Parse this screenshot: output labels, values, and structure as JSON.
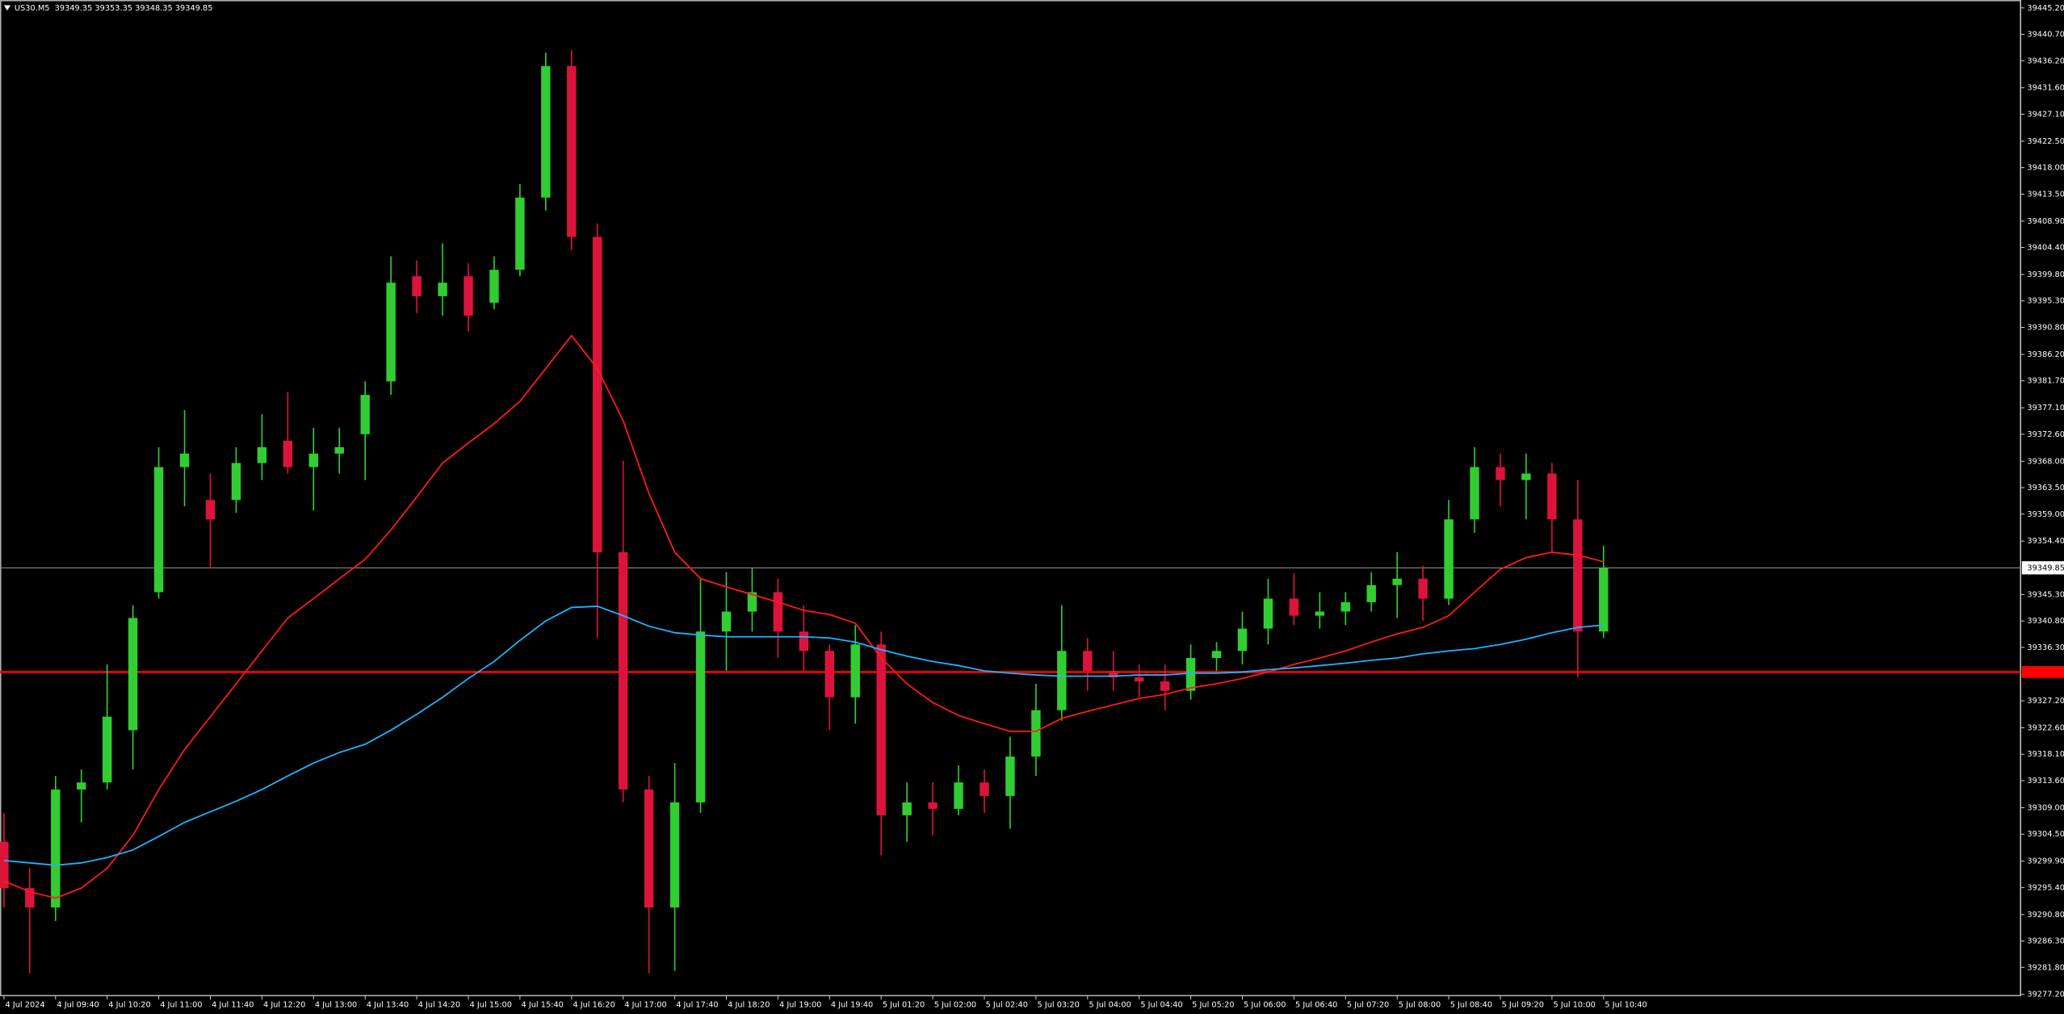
{
  "chart_data": {
    "type": "candlestick",
    "title": "US30.M5  39349.35 39353.35 39348.35 39349.85",
    "categories": [
      "4 Jul 2024",
      null,
      "4 Jul 09:40",
      null,
      "4 Jul 10:20",
      null,
      "4 Jul 11:00",
      null,
      "4 Jul 11:40",
      null,
      "4 Jul 12:20",
      null,
      "4 Jul 13:00",
      null,
      "4 Jul 13:40",
      null,
      "4 Jul 14:20",
      null,
      "4 Jul 15:00",
      null,
      "4 Jul 15:40",
      null,
      "4 Jul 16:20",
      null,
      "4 Jul 17:00",
      null,
      "4 Jul 17:40",
      null,
      "4 Jul 18:20",
      null,
      "4 Jul 19:00",
      null,
      "4 Jul 19:40",
      null,
      "5 Jul 01:20",
      null,
      "5 Jul 02:00",
      null,
      "5 Jul 02:40",
      null,
      "5 Jul 03:20",
      null,
      "5 Jul 04:00",
      null,
      "5 Jul 04:40",
      null,
      "5 Jul 05:20",
      null,
      "5 Jul 06:00",
      null,
      "5 Jul 06:40",
      null,
      "5 Jul 07:20",
      null,
      "5 Jul 08:00",
      null,
      "5 Jul 08:40",
      null,
      "5 Jul 09:20",
      null,
      "5 Jul 10:00",
      null,
      "5 Jul 10:40"
    ],
    "open": [
      39303.2,
      39295.3,
      39292.0,
      39312.1,
      39313.3,
      39322.2,
      39345.7,
      39367.0,
      39361.4,
      39361.4,
      39367.7,
      39371.5,
      39367.0,
      39369.3,
      39372.6,
      39381.6,
      39399.5,
      39396.1,
      39399.5,
      39395.0,
      39400.6,
      39412.9,
      39435.3,
      39406.2,
      39352.5,
      39312.1,
      39292.0,
      39309.9,
      39339.0,
      39342.4,
      39345.7,
      39339.0,
      39335.7,
      39327.8,
      39336.8,
      39307.7,
      39309.9,
      39308.8,
      39313.3,
      39311.0,
      39317.7,
      39325.6,
      39335.7,
      39332.3,
      39331.2,
      39330.5,
      39328.9,
      39334.5,
      39335.7,
      39339.5,
      39344.6,
      39341.7,
      39342.4,
      39344.0,
      39346.9,
      39348.0,
      39344.6,
      39358.1,
      39367.0,
      39364.8,
      39365.9,
      39358.1,
      39339.0
    ],
    "high": [
      39308.1,
      39298.7,
      39314.4,
      39315.5,
      39333.4,
      39343.5,
      39370.4,
      39376.7,
      39365.9,
      39370.4,
      39376.0,
      39379.8,
      39373.7,
      39373.7,
      39381.6,
      39402.9,
      39402.2,
      39405.1,
      39401.7,
      39402.9,
      39415.2,
      39437.6,
      39438.0,
      39408.5,
      39368.1,
      39314.4,
      39316.6,
      39348.0,
      39349.1,
      39349.8,
      39348.0,
      39343.5,
      39336.8,
      39340.1,
      39339.0,
      39313.3,
      39313.3,
      39316.2,
      39315.5,
      39321.1,
      39330.1,
      39343.5,
      39337.9,
      39335.7,
      39333.4,
      39333.4,
      39336.8,
      39337.2,
      39342.4,
      39348.0,
      39348.9,
      39345.7,
      39345.7,
      39349.1,
      39352.5,
      39350.2,
      39361.4,
      39370.4,
      39369.3,
      39369.3,
      39367.7,
      39364.8,
      39353.6
    ],
    "low": [
      39292.0,
      39280.8,
      39289.7,
      39306.5,
      39312.1,
      39315.5,
      39344.6,
      39360.3,
      39349.8,
      39359.2,
      39364.8,
      39365.9,
      39359.6,
      39365.9,
      39364.8,
      39379.3,
      39393.2,
      39392.8,
      39390.1,
      39393.9,
      39399.5,
      39410.7,
      39404.0,
      39337.9,
      39309.9,
      39280.8,
      39281.2,
      39308.1,
      39332.3,
      39339.0,
      39334.5,
      39332.3,
      39322.2,
      39323.3,
      39300.9,
      39303.2,
      39304.3,
      39307.7,
      39308.1,
      39305.4,
      39314.4,
      39323.8,
      39328.9,
      39328.9,
      39327.8,
      39325.6,
      39327.4,
      39332.3,
      39333.4,
      39336.8,
      39340.1,
      39339.5,
      39340.1,
      39342.4,
      39341.3,
      39340.8,
      39343.5,
      39355.8,
      39360.3,
      39358.1,
      39352.5,
      39331.2,
      39337.9
    ],
    "close": [
      39295.3,
      39292.0,
      39312.1,
      39313.3,
      39324.5,
      39341.3,
      39367.0,
      39369.3,
      39358.1,
      39367.7,
      39370.4,
      39367.0,
      39369.3,
      39370.4,
      39379.3,
      39398.4,
      39396.1,
      39398.4,
      39392.8,
      39400.6,
      39412.9,
      39435.3,
      39406.2,
      39352.5,
      39312.1,
      39292.0,
      39309.9,
      39339.0,
      39342.4,
      39345.7,
      39339.0,
      39335.7,
      39327.8,
      39336.8,
      39307.7,
      39309.9,
      39308.8,
      39313.3,
      39311.0,
      39317.7,
      39325.6,
      39335.7,
      39332.3,
      39331.2,
      39330.5,
      39328.9,
      39334.5,
      39335.7,
      39339.5,
      39344.6,
      39341.7,
      39342.4,
      39344.0,
      39346.9,
      39348.0,
      39344.6,
      39358.1,
      39367.0,
      39364.8,
      39365.9,
      39358.1,
      39339.0,
      39349.85
    ],
    "up_color": "#32cd32",
    "down_color": "#dc143c",
    "series": [
      {
        "color": "#ff1a1a",
        "values": [
          39296.5,
          39294.7,
          39293.6,
          39295.3,
          39298.7,
          39304.3,
          39312.1,
          39318.9,
          39324.5,
          39330.1,
          39335.7,
          39341.3,
          39344.6,
          39348.0,
          39351.3,
          39356.3,
          39361.9,
          39367.7,
          39371.1,
          39374.4,
          39378.2,
          39383.8,
          39389.4,
          39383.8,
          39374.9,
          39362.5,
          39352.5,
          39348.0,
          39346.6,
          39345.3,
          39344.0,
          39342.6,
          39341.9,
          39340.4,
          39334.5,
          39330.1,
          39326.9,
          39324.7,
          39323.3,
          39322.0,
          39322.0,
          39324.2,
          39325.4,
          39326.5,
          39327.6,
          39328.3,
          39329.4,
          39330.1,
          39331.0,
          39332.1,
          39333.4,
          39334.5,
          39335.7,
          39337.2,
          39338.6,
          39339.7,
          39341.7,
          39345.7,
          39349.6,
          39351.6,
          39352.5,
          39352.0,
          39350.9
        ]
      },
      {
        "color": "#1eb4ff",
        "values": [
          39300.0,
          39299.6,
          39299.2,
          39299.6,
          39300.5,
          39301.8,
          39304.1,
          39306.5,
          39308.3,
          39310.1,
          39312.1,
          39314.4,
          39316.6,
          39318.4,
          39319.8,
          39322.2,
          39324.9,
          39327.8,
          39331.0,
          39333.9,
          39337.5,
          39340.8,
          39343.1,
          39343.3,
          39341.7,
          39339.9,
          39338.8,
          39338.4,
          39338.1,
          39338.1,
          39338.1,
          39338.1,
          39337.9,
          39337.2,
          39335.9,
          39334.8,
          39333.9,
          39333.2,
          39332.3,
          39331.9,
          39331.6,
          39331.4,
          39331.4,
          39331.4,
          39331.6,
          39331.6,
          39331.9,
          39331.9,
          39332.1,
          39332.5,
          39332.8,
          39333.2,
          39333.6,
          39334.1,
          39334.5,
          39335.2,
          39335.7,
          39336.1,
          39336.8,
          39337.7,
          39338.8,
          39339.7,
          39340.1
        ]
      }
    ],
    "horizontal_lines": [
      {
        "value": 39349.85,
        "color": "#9a9a9a"
      },
      {
        "value": 39332.1,
        "color": "#ff0000"
      }
    ],
    "current_price": 39349.85,
    "ylim": [
      39277.0,
      39446.1
    ],
    "yticks": [
      {
        "value": 39445.2,
        "label": "39445.20"
      },
      {
        "value": 39440.7,
        "label": "39440.70"
      },
      {
        "value": 39436.2,
        "label": "39436.20"
      },
      {
        "value": 39431.6,
        "label": "39431.60"
      },
      {
        "value": 39427.1,
        "label": "39427.10"
      },
      {
        "value": 39422.5,
        "label": "39422.50"
      },
      {
        "value": 39418.0,
        "label": "39418.00"
      },
      {
        "value": 39413.5,
        "label": "39413.50"
      },
      {
        "value": 39408.9,
        "label": "39408.90"
      },
      {
        "value": 39404.4,
        "label": "39404.40"
      },
      {
        "value": 39399.8,
        "label": "39399.80"
      },
      {
        "value": 39395.3,
        "label": "39395.30"
      },
      {
        "value": 39390.8,
        "label": "39390.80"
      },
      {
        "value": 39386.2,
        "label": "39386.20"
      },
      {
        "value": 39381.7,
        "label": "39381.70"
      },
      {
        "value": 39377.1,
        "label": "39377.10"
      },
      {
        "value": 39372.6,
        "label": "39372.60"
      },
      {
        "value": 39368.0,
        "label": "39368.00"
      },
      {
        "value": 39363.5,
        "label": "39363.50"
      },
      {
        "value": 39359.0,
        "label": "39359.00"
      },
      {
        "value": 39354.4,
        "label": "39354.40"
      },
      {
        "value": 39345.3,
        "label": "39345.30"
      },
      {
        "value": 39340.8,
        "label": "39340.80"
      },
      {
        "value": 39336.3,
        "label": "39336.30"
      },
      {
        "value": 39327.2,
        "label": "39327.20"
      },
      {
        "value": 39322.6,
        "label": "39322.60"
      },
      {
        "value": 39318.1,
        "label": "39318.10"
      },
      {
        "value": 39313.6,
        "label": "39313.60"
      },
      {
        "value": 39309.0,
        "label": "39309.00"
      },
      {
        "value": 39304.5,
        "label": "39304.50"
      },
      {
        "value": 39299.9,
        "label": "39299.90"
      },
      {
        "value": 39295.4,
        "label": "39295.40"
      },
      {
        "value": 39290.8,
        "label": "39290.80"
      },
      {
        "value": 39286.3,
        "label": "39286.30"
      },
      {
        "value": 39281.8,
        "label": "39281.80"
      },
      {
        "value": 39277.2,
        "label": "39277.20"
      }
    ],
    "grid": false
  }
}
